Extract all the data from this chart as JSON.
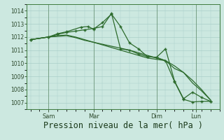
{
  "bg_color": "#cce8e0",
  "grid_color": "#aacfc8",
  "line_color": "#2d6b2d",
  "xlabel": "Pression niveau de la mer( hPa )",
  "xlabel_fontsize": 8.5,
  "ylim": [
    1006.5,
    1014.5
  ],
  "yticks": [
    1007,
    1008,
    1009,
    1010,
    1011,
    1012,
    1013,
    1014
  ],
  "xlim": [
    -0.2,
    10.5
  ],
  "x_tick_labels": [
    "Sam",
    "Mar",
    "Dim",
    "Lun"
  ],
  "x_tick_positions": [
    1.0,
    3.5,
    7.0,
    9.2
  ],
  "series1_x": [
    0,
    0.5,
    1.0,
    1.5,
    2.0,
    2.5,
    3.0,
    3.5,
    4.0,
    4.5,
    5.0,
    5.5,
    6.0,
    6.5,
    7.0,
    7.5,
    8.0,
    8.5,
    9.0,
    9.5,
    10.0
  ],
  "series1_y": [
    1011.8,
    1011.9,
    1012.0,
    1012.1,
    1012.15,
    1012.0,
    1011.8,
    1011.6,
    1011.4,
    1011.2,
    1011.0,
    1010.8,
    1010.6,
    1010.4,
    1010.3,
    1010.2,
    1009.6,
    1009.3,
    1008.5,
    1007.9,
    1007.2
  ],
  "series2_x": [
    0,
    0.5,
    1.0,
    1.5,
    2.0,
    2.5,
    3.0,
    3.5,
    4.0,
    4.5,
    5.0,
    5.5,
    6.0,
    6.5,
    7.0,
    7.5,
    8.0,
    8.5,
    9.0,
    9.5,
    10.0
  ],
  "series2_y": [
    1011.8,
    1011.9,
    1012.0,
    1012.05,
    1012.1,
    1011.95,
    1011.75,
    1011.6,
    1011.45,
    1011.3,
    1011.15,
    1011.0,
    1010.8,
    1010.6,
    1010.4,
    1010.2,
    1009.8,
    1009.3,
    1008.7,
    1008.0,
    1007.2
  ],
  "series3_x": [
    0,
    1.0,
    1.5,
    2.0,
    2.8,
    3.2,
    3.5,
    4.0,
    4.5,
    5.0,
    5.5,
    6.0,
    6.5,
    7.0,
    7.5,
    8.0,
    8.5,
    9.0,
    9.5,
    10.0
  ],
  "series3_y": [
    1011.8,
    1012.0,
    1012.25,
    1012.4,
    1012.75,
    1012.8,
    1012.6,
    1013.1,
    1013.75,
    1012.8,
    1011.55,
    1011.1,
    1010.5,
    1010.45,
    1011.1,
    1008.65,
    1007.3,
    1007.8,
    1007.4,
    1007.1
  ],
  "series4_x": [
    0,
    1.0,
    1.5,
    2.0,
    2.5,
    3.0,
    3.5,
    4.0,
    4.5,
    5.0,
    5.5,
    6.0,
    6.5,
    7.0,
    7.5,
    8.0,
    8.5,
    9.0,
    9.5,
    10.0
  ],
  "series4_y": [
    1011.8,
    1012.0,
    1012.2,
    1012.35,
    1012.45,
    1012.55,
    1012.65,
    1012.8,
    1013.8,
    1011.1,
    1011.0,
    1010.7,
    1010.5,
    1010.45,
    1010.2,
    1008.6,
    1007.25,
    1007.05,
    1007.1,
    1007.1
  ]
}
